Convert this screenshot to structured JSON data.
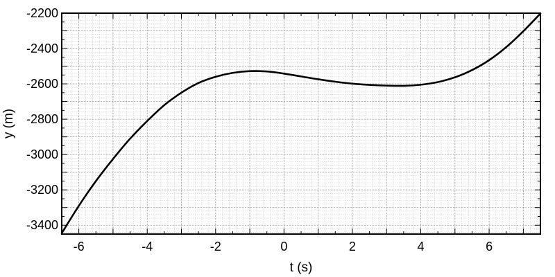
{
  "chart_data": {
    "type": "line",
    "title": "",
    "xlabel": "t (s)",
    "ylabel": "y (m)",
    "xlim": [
      -6.5,
      7.5
    ],
    "ylim": [
      -3450,
      -2200
    ],
    "xticks": [
      -6,
      -4,
      -2,
      0,
      2,
      4,
      6
    ],
    "xtick_labels": [
      "-6",
      "-4",
      "-2",
      "0",
      "2",
      "4",
      "6"
    ],
    "yticks": [
      -3400,
      -3200,
      -3000,
      -2800,
      -2600,
      -2400,
      -2200
    ],
    "ytick_labels": [
      "-3400",
      "-3200",
      "-3000",
      "-2800",
      "-2600",
      "-2400",
      "-2200"
    ],
    "grid": true,
    "legend": "none",
    "series": [
      {
        "color": "#000000",
        "x": [
          -6.5,
          -6,
          -5.5,
          -5,
          -4.5,
          -4,
          -3.5,
          -3,
          -2.5,
          -2,
          -1.5,
          -1,
          -0.5,
          0,
          0.5,
          1,
          1.5,
          2,
          2.5,
          3,
          3.5,
          4,
          4.5,
          5,
          5.5,
          6,
          6.5,
          7,
          7.5
        ],
        "y": [
          -3445,
          -3290,
          -3150,
          -3025,
          -2910,
          -2810,
          -2720,
          -2650,
          -2595,
          -2560,
          -2538,
          -2528,
          -2530,
          -2542,
          -2558,
          -2574,
          -2588,
          -2599,
          -2606,
          -2610,
          -2611,
          -2605,
          -2590,
          -2563,
          -2522,
          -2466,
          -2392,
          -2302,
          -2202
        ]
      }
    ]
  }
}
